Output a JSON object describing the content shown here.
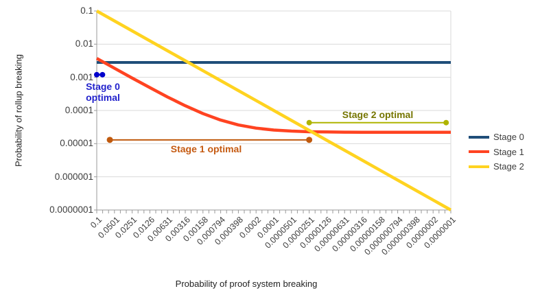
{
  "chart_data": {
    "type": "line",
    "title": "",
    "xlabel": "Probability of proof system breaking",
    "ylabel": "Probability of rollup breaking",
    "x_scale": "log",
    "y_scale": "log",
    "xlim": [
      0.1,
      1e-07
    ],
    "ylim": [
      1e-07,
      0.1
    ],
    "grid": "horizontal",
    "legend_position": "right",
    "x_categories": [
      "0.1",
      "0.0501",
      "0.0251",
      "0.0126",
      "0.00631",
      "0.00316",
      "0.00158",
      "0.000794",
      "0.000398",
      "0.0002",
      "0.0001",
      "0.0000501",
      "0.0000251",
      "0.0000126",
      "0.00000631",
      "0.00000316",
      "0.00000158",
      "0.000000794",
      "0.000000398",
      "0.0000002",
      "0.0000001"
    ],
    "x_values": [
      0.1,
      0.0501,
      0.0251,
      0.0126,
      0.00631,
      0.00316,
      0.00158,
      0.000794,
      0.000398,
      0.0002,
      0.0001,
      5.01e-05,
      2.51e-05,
      1.26e-05,
      6.31e-06,
      3.16e-06,
      1.58e-06,
      7.94e-07,
      3.98e-07,
      2e-07,
      1e-07
    ],
    "y_ticks": [
      "0.1",
      "0.01",
      "0.001",
      "0.0001",
      "0.00001",
      "0.000001",
      "0.0000001"
    ],
    "series": [
      {
        "name": "Stage 0",
        "color": "#1F4E79",
        "width": 4,
        "values": [
          0.0028,
          0.0028,
          0.0028,
          0.0028,
          0.0028,
          0.0028,
          0.0028,
          0.0028,
          0.0028,
          0.0028,
          0.0028,
          0.0028,
          0.0028,
          0.0028,
          0.0028,
          0.0028,
          0.0028,
          0.0028,
          0.0028,
          0.0028,
          0.0028
        ]
      },
      {
        "name": "Stage 1",
        "color": "#FF4321",
        "width": 4.5,
        "values": [
          0.00372,
          0.00188,
          0.00095,
          0.00049,
          0.000255,
          0.000139,
          8.05e-05,
          5.14e-05,
          3.67e-05,
          2.94e-05,
          2.57e-05,
          2.39e-05,
          2.29e-05,
          2.25e-05,
          2.22e-05,
          2.21e-05,
          2.21e-05,
          2.2e-05,
          2.2e-05,
          2.2e-05,
          2.2e-05
        ]
      },
      {
        "name": "Stage 2",
        "color": "#FFD320",
        "width": 4.5,
        "values": [
          0.1,
          0.0501,
          0.0251,
          0.0126,
          0.00631,
          0.00316,
          0.00158,
          0.000794,
          0.000398,
          0.0002,
          0.0001,
          5.01e-05,
          2.51e-05,
          1.26e-05,
          6.31e-06,
          3.16e-06,
          1.58e-06,
          7.94e-07,
          3.98e-07,
          2e-07,
          1e-07
        ]
      }
    ],
    "annotations": [
      {
        "label": "Stage 0 optimal",
        "line_color": "#0000CC",
        "text_color": "#2222CC",
        "y": 0.0012,
        "x_start": 0.1,
        "x_end": 0.08,
        "dot_r": 4,
        "line_w": 2.5
      },
      {
        "label": "Stage 1 optimal",
        "line_color": "#C05A0E",
        "text_color": "#C55A11",
        "y": 1.3e-05,
        "x_start": 0.06,
        "x_end": 2.51e-05,
        "dot_r": 4.5,
        "line_w": 2
      },
      {
        "label": "Stage 2 optimal",
        "line_color": "#AFB400",
        "text_color": "#757500",
        "y": 4.3e-05,
        "x_start": 2.51e-05,
        "x_end": 1.2e-07,
        "dot_r": 4,
        "line_w": 2
      }
    ],
    "colors": {
      "gridline": "#D9D9D9",
      "axis": "#9A9A9A",
      "background": "#FFFFFF"
    }
  }
}
